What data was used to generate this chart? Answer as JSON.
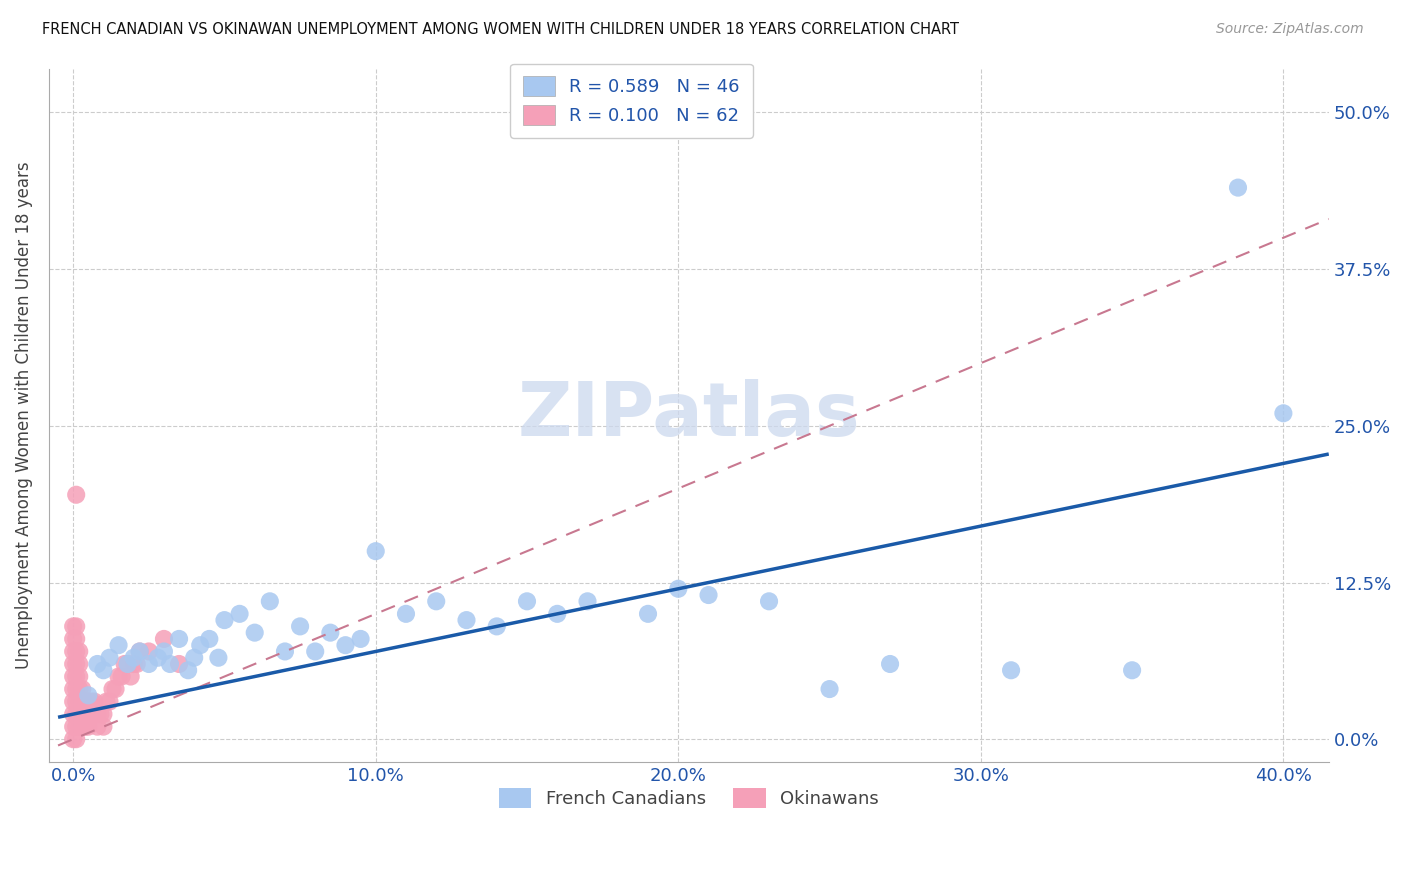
{
  "title": "FRENCH CANADIAN VS OKINAWAN UNEMPLOYMENT AMONG WOMEN WITH CHILDREN UNDER 18 YEARS CORRELATION CHART",
  "source": "Source: ZipAtlas.com",
  "ylabel": "Unemployment Among Women with Children Under 18 years",
  "xlim": [
    -0.008,
    0.415
  ],
  "ylim": [
    -0.018,
    0.535
  ],
  "x_tick_vals": [
    0.0,
    0.1,
    0.2,
    0.3,
    0.4
  ],
  "x_tick_labels": [
    "0.0%",
    "10.0%",
    "20.0%",
    "30.0%",
    "40.0%"
  ],
  "y_tick_vals": [
    0.0,
    0.125,
    0.25,
    0.375,
    0.5
  ],
  "y_tick_labels": [
    "0.0%",
    "12.5%",
    "25.0%",
    "37.5%",
    "50.0%"
  ],
  "french_R": 0.589,
  "french_N": 46,
  "okinawan_R": 0.1,
  "okinawan_N": 62,
  "french_color": "#a8c8f0",
  "okinawan_color": "#f5a0b8",
  "french_line_color": "#1a5aa8",
  "okinawan_line_color": "#c87890",
  "watermark": "ZIPatlas",
  "legend_label1": "French Canadians",
  "legend_label2": "Okinawans",
  "background_color": "#ffffff",
  "grid_color": "#cccccc",
  "fc_x": [
    0.005,
    0.008,
    0.01,
    0.012,
    0.015,
    0.018,
    0.02,
    0.022,
    0.025,
    0.028,
    0.03,
    0.032,
    0.035,
    0.038,
    0.04,
    0.042,
    0.045,
    0.048,
    0.05,
    0.055,
    0.06,
    0.065,
    0.07,
    0.075,
    0.08,
    0.085,
    0.09,
    0.095,
    0.1,
    0.11,
    0.12,
    0.13,
    0.14,
    0.15,
    0.16,
    0.17,
    0.19,
    0.2,
    0.21,
    0.23,
    0.25,
    0.27,
    0.31,
    0.35,
    0.385,
    0.4
  ],
  "fc_y": [
    0.035,
    0.06,
    0.055,
    0.065,
    0.075,
    0.06,
    0.065,
    0.07,
    0.06,
    0.065,
    0.07,
    0.06,
    0.08,
    0.055,
    0.065,
    0.075,
    0.08,
    0.065,
    0.095,
    0.1,
    0.085,
    0.11,
    0.07,
    0.09,
    0.07,
    0.085,
    0.075,
    0.08,
    0.15,
    0.1,
    0.11,
    0.095,
    0.09,
    0.11,
    0.1,
    0.11,
    0.1,
    0.12,
    0.115,
    0.11,
    0.04,
    0.06,
    0.055,
    0.055,
    0.44,
    0.26
  ],
  "ok_x": [
    0.0,
    0.0,
    0.0,
    0.0,
    0.0,
    0.0,
    0.0,
    0.0,
    0.0,
    0.0,
    0.001,
    0.001,
    0.001,
    0.001,
    0.001,
    0.001,
    0.001,
    0.001,
    0.001,
    0.001,
    0.002,
    0.002,
    0.002,
    0.002,
    0.002,
    0.002,
    0.002,
    0.003,
    0.003,
    0.003,
    0.003,
    0.004,
    0.004,
    0.004,
    0.005,
    0.005,
    0.005,
    0.006,
    0.006,
    0.007,
    0.007,
    0.008,
    0.008,
    0.009,
    0.01,
    0.01,
    0.011,
    0.012,
    0.013,
    0.014,
    0.015,
    0.016,
    0.017,
    0.018,
    0.019,
    0.02,
    0.021,
    0.022,
    0.025,
    0.03,
    0.035,
    0.001
  ],
  "ok_y": [
    0.0,
    0.01,
    0.02,
    0.03,
    0.04,
    0.05,
    0.06,
    0.07,
    0.08,
    0.09,
    0.0,
    0.01,
    0.02,
    0.03,
    0.04,
    0.05,
    0.06,
    0.07,
    0.08,
    0.09,
    0.01,
    0.02,
    0.03,
    0.04,
    0.05,
    0.06,
    0.07,
    0.01,
    0.02,
    0.03,
    0.04,
    0.01,
    0.02,
    0.03,
    0.01,
    0.02,
    0.03,
    0.02,
    0.03,
    0.02,
    0.03,
    0.01,
    0.02,
    0.02,
    0.01,
    0.02,
    0.03,
    0.03,
    0.04,
    0.04,
    0.05,
    0.05,
    0.06,
    0.06,
    0.05,
    0.06,
    0.06,
    0.07,
    0.07,
    0.08,
    0.06,
    0.195
  ]
}
